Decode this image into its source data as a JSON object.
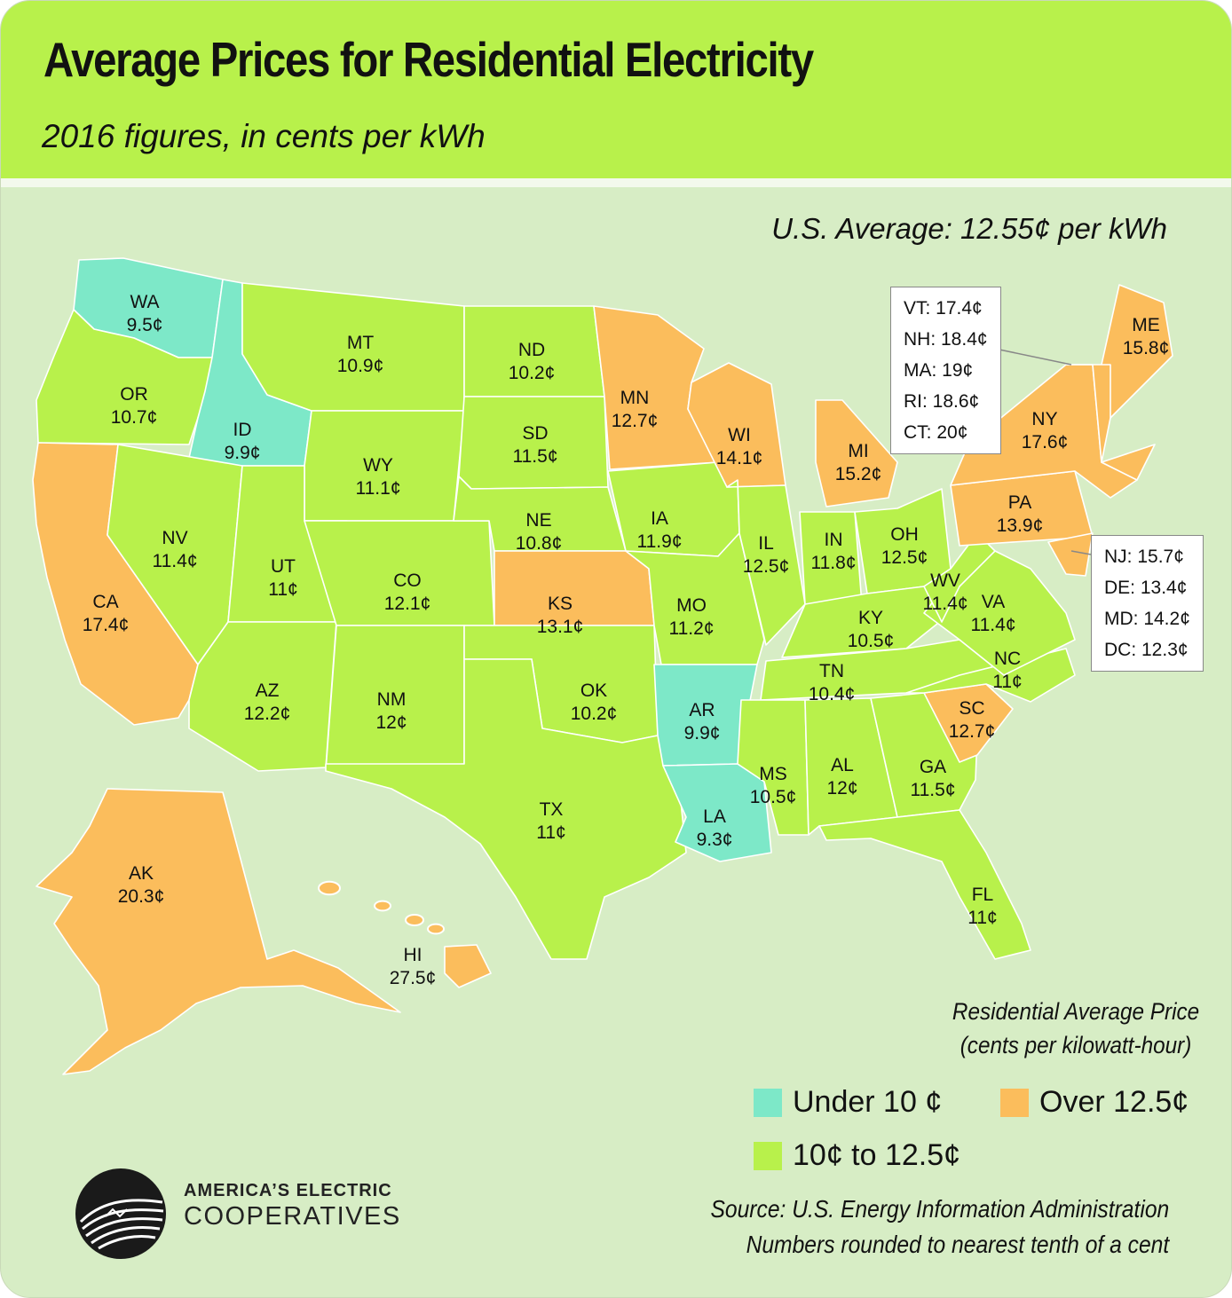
{
  "title": "Average Prices for Residential Electricity",
  "subtitle": "2016 figures, in cents per kWh",
  "us_average": "U.S. Average: 12.55¢ per kWh",
  "colors": {
    "under_10": "#7de8c8",
    "mid": "#b8f14b",
    "over_12_5": "#fbbd5c",
    "background": "#d7edc5",
    "header": "#b8f14b"
  },
  "states": [
    {
      "code": "WA",
      "price": "9.5¢",
      "category": "under_10"
    },
    {
      "code": "OR",
      "price": "10.7¢",
      "category": "mid"
    },
    {
      "code": "CA",
      "price": "17.4¢",
      "category": "over_12_5"
    },
    {
      "code": "ID",
      "price": "9.9¢",
      "category": "under_10"
    },
    {
      "code": "NV",
      "price": "11.4¢",
      "category": "mid"
    },
    {
      "code": "MT",
      "price": "10.9¢",
      "category": "mid"
    },
    {
      "code": "WY",
      "price": "11.1¢",
      "category": "mid"
    },
    {
      "code": "UT",
      "price": "11¢",
      "category": "mid"
    },
    {
      "code": "AZ",
      "price": "12.2¢",
      "category": "mid"
    },
    {
      "code": "CO",
      "price": "12.1¢",
      "category": "mid"
    },
    {
      "code": "NM",
      "price": "12¢",
      "category": "mid"
    },
    {
      "code": "ND",
      "price": "10.2¢",
      "category": "mid"
    },
    {
      "code": "SD",
      "price": "11.5¢",
      "category": "mid"
    },
    {
      "code": "NE",
      "price": "10.8¢",
      "category": "mid"
    },
    {
      "code": "KS",
      "price": "13.1¢",
      "category": "over_12_5"
    },
    {
      "code": "OK",
      "price": "10.2¢",
      "category": "mid"
    },
    {
      "code": "TX",
      "price": "11¢",
      "category": "mid"
    },
    {
      "code": "MN",
      "price": "12.7¢",
      "category": "over_12_5"
    },
    {
      "code": "IA",
      "price": "11.9¢",
      "category": "mid"
    },
    {
      "code": "MO",
      "price": "11.2¢",
      "category": "mid"
    },
    {
      "code": "AR",
      "price": "9.9¢",
      "category": "under_10"
    },
    {
      "code": "LA",
      "price": "9.3¢",
      "category": "under_10"
    },
    {
      "code": "WI",
      "price": "14.1¢",
      "category": "over_12_5"
    },
    {
      "code": "IL",
      "price": "12.5¢",
      "category": "mid"
    },
    {
      "code": "MI",
      "price": "15.2¢",
      "category": "over_12_5"
    },
    {
      "code": "IN",
      "price": "11.8¢",
      "category": "mid"
    },
    {
      "code": "OH",
      "price": "12.5¢",
      "category": "mid"
    },
    {
      "code": "KY",
      "price": "10.5¢",
      "category": "mid"
    },
    {
      "code": "TN",
      "price": "10.4¢",
      "category": "mid"
    },
    {
      "code": "MS",
      "price": "10.5¢",
      "category": "mid"
    },
    {
      "code": "AL",
      "price": "12¢",
      "category": "mid"
    },
    {
      "code": "GA",
      "price": "11.5¢",
      "category": "mid"
    },
    {
      "code": "FL",
      "price": "11¢",
      "category": "mid"
    },
    {
      "code": "SC",
      "price": "12.7¢",
      "category": "over_12_5"
    },
    {
      "code": "NC",
      "price": "11¢",
      "category": "mid"
    },
    {
      "code": "VA",
      "price": "11.4¢",
      "category": "mid"
    },
    {
      "code": "WV",
      "price": "11.4¢",
      "category": "mid"
    },
    {
      "code": "PA",
      "price": "13.9¢",
      "category": "over_12_5"
    },
    {
      "code": "NY",
      "price": "17.6¢",
      "category": "over_12_5"
    },
    {
      "code": "ME",
      "price": "15.8¢",
      "category": "over_12_5"
    },
    {
      "code": "AK",
      "price": "20.3¢",
      "category": "over_12_5"
    },
    {
      "code": "HI",
      "price": "27.5¢",
      "category": "over_12_5"
    }
  ],
  "callout_new_england": [
    "VT: 17.4¢",
    "NH: 18.4¢",
    "MA: 19¢",
    "RI: 18.6¢",
    "CT: 20¢"
  ],
  "callout_mid_atlantic": [
    "NJ: 15.7¢",
    "DE: 13.4¢",
    "MD: 14.2¢",
    "DC: 12.3¢"
  ],
  "legend": {
    "title_line1": "Residential Average Price",
    "title_line2": "(cents per kilowatt-hour)",
    "under_10": "Under 10 ¢",
    "over_12_5": "Over 12.5¢",
    "mid": "10¢ to 12.5¢"
  },
  "logo": {
    "line1": "AMERICA’S ELECTRIC",
    "line2": "COOPERATIVES"
  },
  "source_line1": "Source: U.S. Energy Information Administration",
  "source_line2": "Numbers rounded to nearest tenth of a cent"
}
